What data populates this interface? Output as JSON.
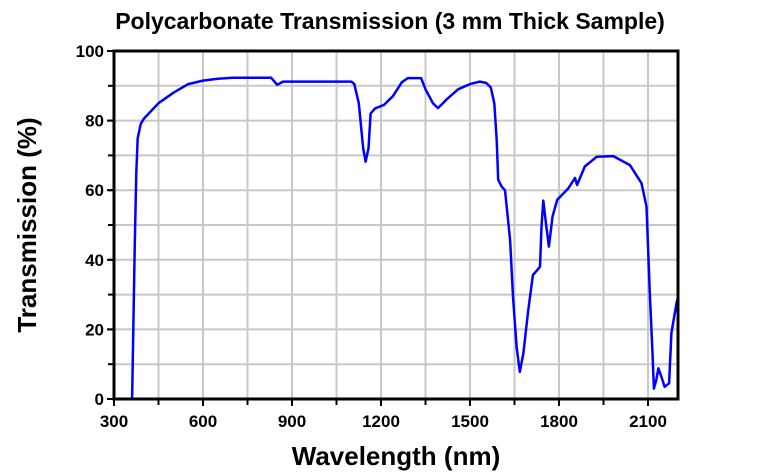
{
  "chart_data": {
    "type": "line",
    "title": "Polycarbonate Transmission (3 mm Thick Sample)",
    "xlabel": "Wavelength (nm)",
    "ylabel": "Transmission (%)",
    "xlim": [
      300,
      2200
    ],
    "ylim": [
      0,
      100
    ],
    "xticks": [
      300,
      600,
      900,
      1200,
      1500,
      1800,
      2100
    ],
    "yticks": [
      0,
      20,
      40,
      60,
      80,
      100
    ],
    "x_minor_step": 150,
    "y_minor_step": 10,
    "grid": true,
    "line_color": "#0000ff",
    "series": [
      {
        "name": "Transmission",
        "x": [
          361,
          365,
          370,
          375,
          380,
          390,
          400,
          450,
          500,
          550,
          600,
          650,
          700,
          830,
          850,
          870,
          1100,
          1110,
          1125,
          1140,
          1148,
          1158,
          1165,
          1180,
          1210,
          1240,
          1270,
          1290,
          1335,
          1350,
          1375,
          1392,
          1420,
          1460,
          1500,
          1533,
          1555,
          1570,
          1582,
          1590,
          1595,
          1607,
          1618,
          1635,
          1645,
          1657,
          1668,
          1680,
          1695,
          1712,
          1736,
          1741,
          1747,
          1756,
          1766,
          1778,
          1794,
          1831,
          1854,
          1861,
          1887,
          1927,
          1983,
          2039,
          2078,
          2095,
          2106,
          2115,
          2120,
          2128,
          2135,
          2145,
          2156,
          2171,
          2179,
          2196,
          2200
        ],
        "y": [
          0,
          20,
          45,
          65,
          75,
          79,
          80.5,
          85,
          88,
          90.5,
          91.5,
          92,
          92.3,
          92.3,
          90.3,
          91.2,
          91.2,
          90.5,
          85,
          72,
          68.2,
          72,
          82,
          83.5,
          84.5,
          87,
          91,
          92.2,
          92.2,
          89,
          85,
          83.6,
          86,
          89,
          90.5,
          91.2,
          90.8,
          89.5,
          85,
          74.4,
          63,
          61,
          60,
          45.7,
          29.4,
          15,
          7.8,
          13.2,
          24.7,
          35.6,
          38,
          49.5,
          57,
          50.6,
          43.8,
          52.4,
          57.2,
          60.5,
          63.5,
          61.5,
          66.8,
          69.6,
          69.8,
          67.2,
          62,
          55.3,
          30.4,
          13.2,
          3,
          5.5,
          8.8,
          6.4,
          3.5,
          4.5,
          19,
          27.5,
          29
        ]
      }
    ]
  }
}
